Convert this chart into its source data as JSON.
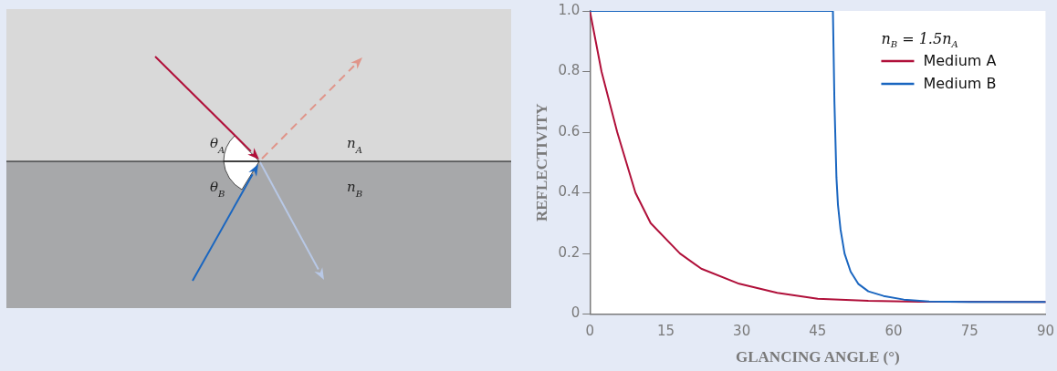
{
  "chart_data": {
    "type": "line",
    "xlabel": "GLANCING ANGLE (°)",
    "ylabel": "REFLECTIVITY",
    "legend_title": "n$_{B}$ = 1.5n$_{A}$",
    "legend": "top right",
    "marker": "none",
    "line_style": "solid",
    "grid": false,
    "xlim": [
      0,
      90
    ],
    "xticks": [
      0,
      15,
      30,
      45,
      60,
      75,
      90
    ],
    "ylim": [
      0,
      1
    ],
    "yticks": [
      0,
      0.2,
      0.4,
      0.6,
      0.8,
      {
        "value": 1,
        "label": "1.0"
      }
    ],
    "annotations": [
      "θ$_{A}$",
      "θ$_{B}$",
      "n$_{A}$",
      "n$_{B}$"
    ],
    "series": [
      {
        "name": "Medium A",
        "color": "#b0103a",
        "x": [
          0,
          2.3,
          5.4,
          9,
          12,
          17.8,
          22,
          29.5,
          37,
          45,
          55,
          65,
          90
        ],
        "values": [
          1,
          0.8,
          0.6,
          0.4,
          0.3,
          0.2,
          0.15,
          0.1,
          0.07,
          0.051,
          0.044,
          0.041,
          0.04
        ]
      },
      {
        "name": "Medium B",
        "color": "#1a66c0",
        "x": [
          0,
          48,
          48.3,
          48.7,
          49,
          49.5,
          50.3,
          51.5,
          53,
          55,
          58,
          62,
          67,
          75,
          90
        ],
        "values": [
          1,
          1,
          0.7,
          0.45,
          0.36,
          0.28,
          0.2,
          0.14,
          0.1,
          0.075,
          0.06,
          0.048,
          0.042,
          0.04,
          0.04
        ]
      }
    ]
  }
}
